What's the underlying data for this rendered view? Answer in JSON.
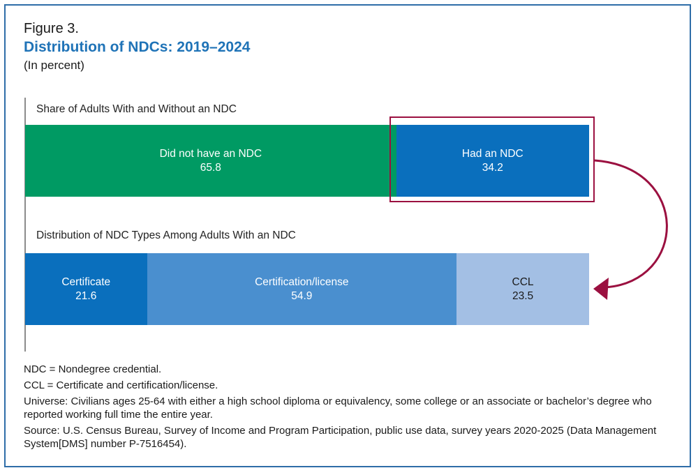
{
  "figure": {
    "label": "Figure 3.",
    "title": "Distribution of NDCs: 2019–2024",
    "subtitle": "(In percent)"
  },
  "colors": {
    "frame": "#2e6da8",
    "title": "#1f73b7",
    "highlight": "#9b1040"
  },
  "chart_data": [
    {
      "type": "bar",
      "orientation": "horizontal-stacked",
      "title": "Share of Adults With and Without an NDC",
      "series": [
        {
          "name": "Did not have an NDC",
          "value": 65.8,
          "color": "#009a63"
        },
        {
          "name": "Had an NDC",
          "value": 34.2,
          "color": "#0a6fbd"
        }
      ],
      "xlim": [
        0,
        100
      ],
      "highlighted_series": "Had an NDC"
    },
    {
      "type": "bar",
      "orientation": "horizontal-stacked",
      "title": "Distribution of NDC Types Among Adults With an NDC",
      "series": [
        {
          "name": "Certificate",
          "value": 21.6,
          "color": "#0a6fbd"
        },
        {
          "name": "Certification/license",
          "value": 54.9,
          "color": "#4a8fcf"
        },
        {
          "name": "CCL",
          "value": 23.5,
          "color": "#a3bfe4"
        }
      ],
      "xlim": [
        0,
        100
      ]
    }
  ],
  "notes": [
    "NDC = Nondegree credential.",
    "CCL = Certificate and certification/license.",
    "Universe: Civilians ages 25-64 with either a high school diploma or equivalency, some college or an associate or bachelor’s degree who reported working full time the entire year.",
    "Source: U.S. Census Bureau, Survey of Income and Program Participation, public use data, survey years 2020-2025 (Data Management System[DMS] number P-7516454)."
  ]
}
